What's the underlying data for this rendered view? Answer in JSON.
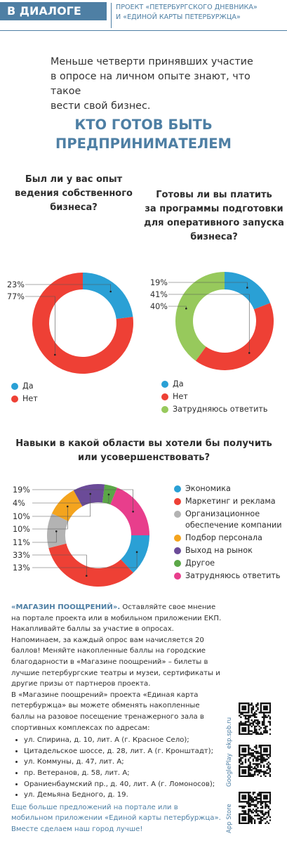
{
  "header": {
    "tag": "В ДИАЛОГЕ",
    "project_line1": "ПРОЕКТ «ПЕТЕРБУРГСКОГО ДНЕВНИКА»",
    "project_line2": "И «ЕДИНОЙ КАРТЫ ПЕТЕРБУРЖЦА»"
  },
  "intro": {
    "line1": "Меньше четверти принявших участие",
    "line2": "в опросе на личном опыте знают, что такое",
    "line3": "вести свой бизнес."
  },
  "main_title": {
    "line1": "КТО ГОТОВ БЫТЬ",
    "line2": "ПРЕДПРИНИМАТЕЛЕМ"
  },
  "colors": {
    "accent": "#4e7fa4",
    "blue": "#2aa0d5",
    "red": "#ee4035",
    "orange": "#f4a41e",
    "gray": "#b3b3b3",
    "purple": "#6b4b98",
    "green": "#5ba747",
    "pink": "#e83e8c",
    "lightgreen": "#97c95c"
  },
  "chart_data": [
    {
      "type": "pie",
      "title": {
        "line1": "Был ли у вас опыт",
        "line2": "ведения собственного",
        "line3": "бизнеса?"
      },
      "labels": [
        "Да",
        "Нет"
      ],
      "values": [
        23,
        77
      ],
      "value_labels": [
        "23%",
        "77%"
      ],
      "colors": [
        "#2aa0d5",
        "#ee4035"
      ]
    },
    {
      "type": "pie",
      "title": {
        "line1": "Готовы ли вы платить",
        "line2": "за программы подготовки",
        "line3": "для оперативного запуска",
        "line4": "бизнеса?"
      },
      "labels": [
        "Да",
        "Нет",
        "Затрудняюсь ответить"
      ],
      "values": [
        19,
        41,
        40
      ],
      "value_labels": [
        "19%",
        "41%",
        "40%"
      ],
      "colors": [
        "#2aa0d5",
        "#ee4035",
        "#97c95c"
      ]
    },
    {
      "type": "pie",
      "title": {
        "line1": "Навыки в какой области вы хотели бы получить",
        "line2": "или усовершенствовать?"
      },
      "labels": [
        "Экономика",
        "Маркетинг и реклама",
        "Организационное обеспечение компании",
        "Подбор персонала",
        "Выход на рынок",
        "Другое",
        "Затрудняюсь ответить"
      ],
      "legend_lines": [
        [
          "Экономика"
        ],
        [
          "Маркетинг и реклама"
        ],
        [
          "Организационное",
          "обеспечение компании"
        ],
        [
          "Подбор персонала"
        ],
        [
          "Выход на рынок"
        ],
        [
          "Другое"
        ],
        [
          "Затрудняюсь ответить"
        ]
      ],
      "values": [
        13,
        33,
        11,
        10,
        10,
        4,
        19
      ],
      "value_labels": [
        "13%",
        "33%",
        "11%",
        "10%",
        "10%",
        "4%",
        "19%"
      ],
      "colors": [
        "#2aa0d5",
        "#ee4035",
        "#b3b3b3",
        "#f4a41e",
        "#6b4b98",
        "#5ba747",
        "#e83e8c"
      ]
    }
  ],
  "promo": {
    "title": "«МАГАЗИН ПООЩРЕНИЙ».",
    "p1": "Оставляйте свое мнение на портале проекта или в мобильном приложении ЕКП. Накапливайте баллы за участие в опросах. Напоминаем, за каждый опрос вам начисляется 20 баллов! Меняйте накопленные баллы на городские благодарности в «Магазине поощрений» – билеты в лучшие петербургские театры и музеи, сертификаты и другие призы от партнеров проекта.",
    "p2": "В «Магазине поощрений» проекта «Единая карта петербуржца» вы можете обменять накопленные баллы на разовое посещение тренажерного зала в спортивных комплексах по адресам:",
    "addresses": [
      "ул. Спирина, д. 10, лит. А (г. Красное Село);",
      "Цитадельское шоссе, д. 28, лит. А (г. Кронштадт);",
      "ул. Коммуны, д. 47, лит. А;",
      "пр. Ветеранов, д. 58, лит. А;",
      "Ораниенбаумский пр., д. 40, лит. А (г. Ломоносов);",
      "ул. Демьяна Бедного, д. 19."
    ],
    "cta": "Еще больше предложений на портале или в мобильном приложении «Единой карты петербуржца».",
    "closing": "Вместе сделаем наш город лучше!"
  },
  "qr": [
    {
      "label": "ekp.spb.ru",
      "icon": "qr-code-icon"
    },
    {
      "label": "GooglePlay",
      "icon": "qr-code-icon"
    },
    {
      "label": "App Store",
      "icon": "qr-code-icon"
    }
  ]
}
